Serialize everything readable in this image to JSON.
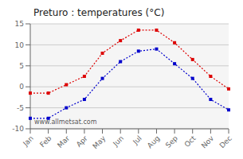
{
  "chart_data": {
    "type": "line",
    "title": "Preturo : temperatures (°C)",
    "categories": [
      "Jan",
      "Feb",
      "Mar",
      "Apr",
      "May",
      "Jun",
      "Jul",
      "Aug",
      "Sep",
      "Oct",
      "Nov",
      "Dec"
    ],
    "series": [
      {
        "color": "#dd0000",
        "marker": "square",
        "line_style": "dotted",
        "values": [
          -1.5,
          -1.5,
          0.5,
          2.5,
          8.0,
          11.0,
          13.5,
          13.5,
          10.5,
          6.5,
          2.5,
          -0.5
        ]
      },
      {
        "color": "#0000cc",
        "marker": "square",
        "line_style": "dotted",
        "values": [
          -7.5,
          -7.5,
          -5.0,
          -3.0,
          2.0,
          6.0,
          8.5,
          9.0,
          5.5,
          2.0,
          -3.0,
          -5.5
        ]
      }
    ],
    "ylim": [
      -10,
      15
    ],
    "yticks": [
      -10,
      -5,
      0,
      5,
      10,
      15
    ],
    "grid": "y",
    "annotations": [
      "www.allmetsat.com"
    ]
  }
}
